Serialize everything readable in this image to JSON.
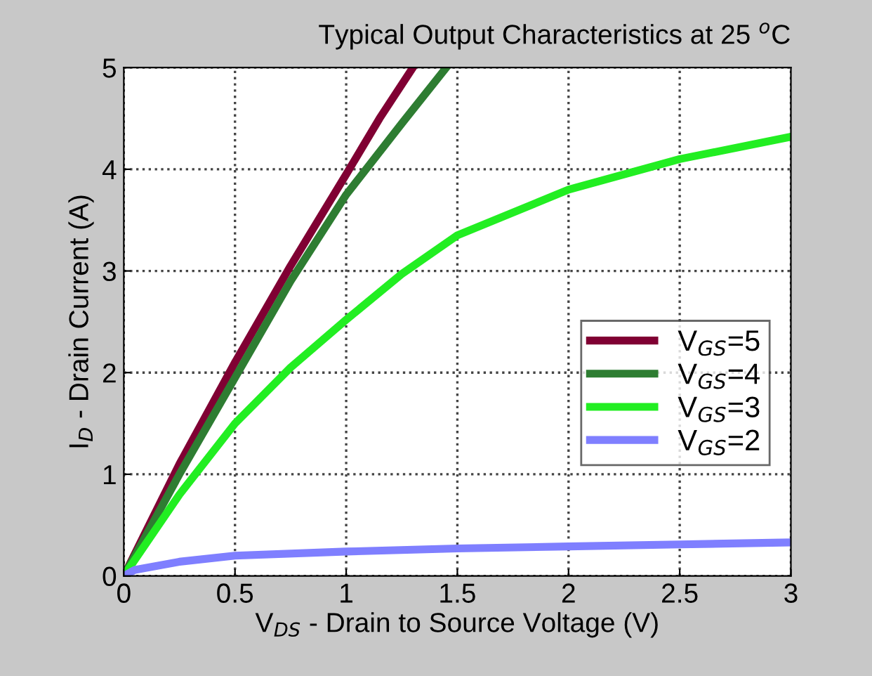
{
  "chart_data": {
    "type": "line",
    "title": "Typical Output Characteristics at 25 $^{o}$C",
    "xlabel": "V$_{DS}$ - Drain to Source Voltage (V)",
    "ylabel": "I$_{D}$ - Drain Current (A)",
    "series": [
      {
        "name": "V$_{GS}$=5",
        "color": "#800033",
        "x": [
          0,
          0.25,
          0.5,
          0.75,
          1,
          1.15,
          1.3
        ],
        "values": [
          0,
          1.1,
          2.1,
          3.05,
          3.95,
          4.5,
          5
        ]
      },
      {
        "name": "V$_{GS}$=4",
        "color": "#2e7d32",
        "x": [
          0,
          0.25,
          0.5,
          0.75,
          1,
          1.25,
          1.45
        ],
        "values": [
          0,
          1.0,
          1.95,
          2.9,
          3.75,
          4.45,
          5
        ]
      },
      {
        "name": "V$_{GS}$=3",
        "color": "#22ee22",
        "x": [
          0,
          0.25,
          0.5,
          0.75,
          1,
          1.25,
          1.5,
          2,
          2.5,
          3
        ],
        "values": [
          0,
          0.8,
          1.5,
          2.05,
          2.52,
          2.97,
          3.35,
          3.8,
          4.1,
          4.32
        ]
      },
      {
        "name": "V$_{GS}$=2",
        "color": "#7f7fff",
        "x": [
          0,
          0.05,
          0.25,
          0.5,
          1,
          1.5,
          2,
          2.5,
          3
        ],
        "values": [
          0,
          0.06,
          0.14,
          0.2,
          0.24,
          0.27,
          0.29,
          0.31,
          0.33
        ]
      }
    ],
    "xlim": [
      0,
      3
    ],
    "ylim": [
      0,
      5
    ],
    "xticks": [
      0,
      0.5,
      1,
      1.5,
      2,
      2.5,
      3
    ],
    "yticks": [
      0,
      1,
      2,
      3,
      4,
      5
    ],
    "grid": true,
    "legend": "right",
    "line_style": "solid",
    "marker": "none"
  }
}
